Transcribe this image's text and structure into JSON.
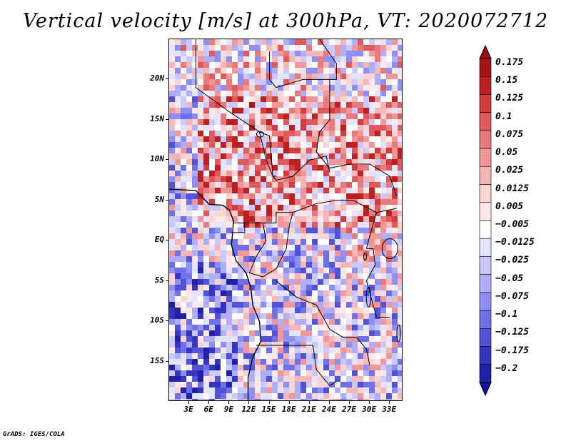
{
  "title": "Vertical velocity [m/s] at 300hPa, VT: 2020072712",
  "footer": "GrADS: IGES/COLA",
  "map": {
    "lon_range": [
      0,
      35
    ],
    "lat_range": [
      -20,
      25
    ],
    "lat_ticks": [
      {
        "value": 20,
        "label": "20N"
      },
      {
        "value": 15,
        "label": "15N"
      },
      {
        "value": 10,
        "label": "10N"
      },
      {
        "value": 5,
        "label": "5N"
      },
      {
        "value": 0,
        "label": "EQ"
      },
      {
        "value": -5,
        "label": "5S"
      },
      {
        "value": -10,
        "label": "10S"
      },
      {
        "value": -15,
        "label": "15S"
      }
    ],
    "lon_ticks": [
      {
        "value": 3,
        "label": "3E"
      },
      {
        "value": 6,
        "label": "6E"
      },
      {
        "value": 9,
        "label": "9E"
      },
      {
        "value": 12,
        "label": "12E"
      },
      {
        "value": 15,
        "label": "15E"
      },
      {
        "value": 18,
        "label": "18E"
      },
      {
        "value": 21,
        "label": "21E"
      },
      {
        "value": 24,
        "label": "24E"
      },
      {
        "value": 27,
        "label": "27E"
      },
      {
        "value": 30,
        "label": "30E"
      },
      {
        "value": 33,
        "label": "33E"
      }
    ]
  },
  "colorbar": {
    "levels": [
      {
        "label": "0.175",
        "color": "#a51416"
      },
      {
        "label": "0.15",
        "color": "#bd2023"
      },
      {
        "label": "0.125",
        "color": "#d33b3f"
      },
      {
        "label": "0.1",
        "color": "#e05a5d"
      },
      {
        "label": "0.075",
        "color": "#e9797b"
      },
      {
        "label": "0.05",
        "color": "#ef9799"
      },
      {
        "label": "0.025",
        "color": "#f5b6b7"
      },
      {
        "label": "0.0125",
        "color": "#fad3d3"
      },
      {
        "label": "0.005",
        "color": "#fde9e9"
      },
      {
        "label": "−0.005",
        "color": "#ffffff"
      },
      {
        "label": "−0.0125",
        "color": "#e4e4ff"
      },
      {
        "label": "−0.025",
        "color": "#c9c9fd"
      },
      {
        "label": "−0.05",
        "color": "#aeaefa"
      },
      {
        "label": "−0.075",
        "color": "#8f8ff3"
      },
      {
        "label": "−0.1",
        "color": "#7070e8"
      },
      {
        "label": "−0.125",
        "color": "#5252d8"
      },
      {
        "label": "−0.175",
        "color": "#3535c2"
      },
      {
        "label": "−0.2",
        "color": "#2020a8"
      }
    ],
    "bottom_color": "#1414a0",
    "top_color": "#9c0f12"
  }
}
